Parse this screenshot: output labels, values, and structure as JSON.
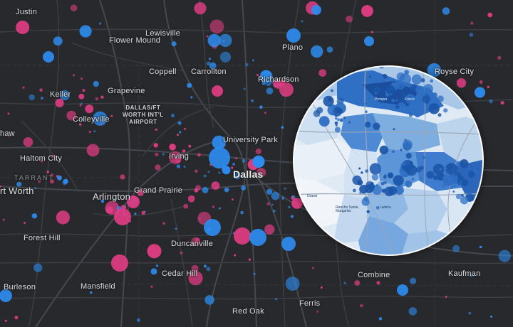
{
  "map": {
    "colors": {
      "background": "#28292c",
      "road": "#3b3e42",
      "dot_primary": "#2d8cf0",
      "dot_secondary": "#e03d83",
      "label": "#d9dadb",
      "inset_border": "#ffffff",
      "inset_fill_dark": "#1b55a8",
      "inset_fill_light": "#dfeaf5"
    },
    "labels": {
      "justin": "Justin",
      "lewisville": "Lewisville",
      "flower_mound": "Flower Mound",
      "plano": "Plano",
      "royse_city": "Royse City",
      "coppell": "Coppell",
      "carrollton": "Carrollton",
      "richardson": "Richardson",
      "keller": "Keller",
      "grapevine": "Grapevine",
      "airport": "DALLAS/FT\nWORTH INT'L\nAIRPORT",
      "colleyville": "Colleyville",
      "university_park": "University Park",
      "haw": "haw",
      "haltom_city": "Haltom City",
      "irving": "Irving",
      "dallas": "Dallas",
      "tarrant": "TARRANT",
      "fort_worth": "rt Worth",
      "arlington": "Arlington",
      "grand_prairie": "Grand Prairie",
      "forest_hill": "Forest Hill",
      "duncanville": "Duncanville",
      "cedar_hill": "Cedar Hill",
      "combine": "Combine",
      "kaufman": "Kaufman",
      "burleson": "Burleson",
      "mansfield": "Mansfield",
      "red_oak": "Red Oak",
      "ferris": "Ferris"
    },
    "inset": {
      "labels": {
        "prosper": "Prosper",
        "frisco": "Frisco",
        "grand": "Grand",
        "rancho": "Rancho Santa\nMargarita",
        "ladera": "Ladera"
      }
    }
  }
}
